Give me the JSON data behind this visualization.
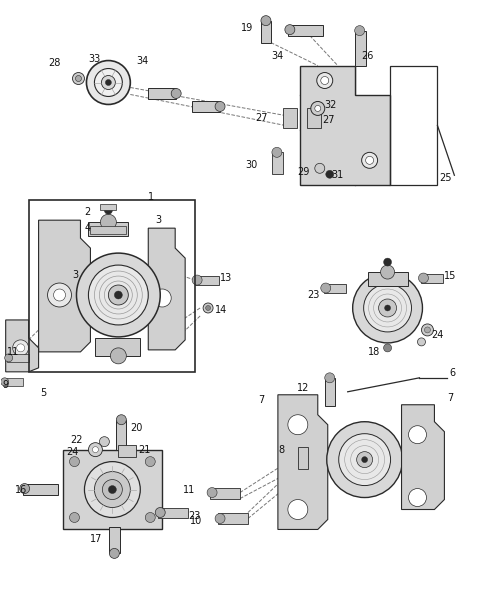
{
  "bg_color": "#ffffff",
  "line_color": "#2a2a2a",
  "fig_width": 4.8,
  "fig_height": 5.96,
  "dpi": 100,
  "label_fs": 7.0
}
